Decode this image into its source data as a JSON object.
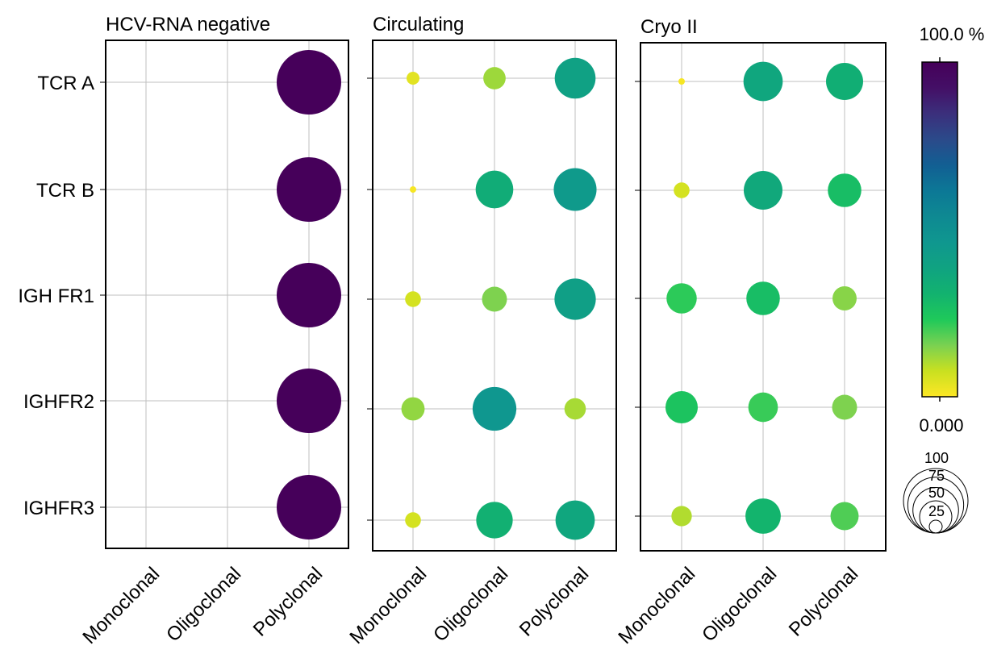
{
  "chart_data": {
    "type": "bubble",
    "categories": [
      "Monoclonal",
      "Oligoclonal",
      "Polyclonal"
    ],
    "rows": [
      "TCR A",
      "TCR B",
      "IGH FR1",
      "IGHFR2",
      "IGHFR3"
    ],
    "panels": [
      {
        "title": "HCV-RNA negative",
        "values": [
          [
            0,
            0,
            100
          ],
          [
            0,
            0,
            100
          ],
          [
            0,
            0,
            100
          ],
          [
            0,
            0,
            100
          ],
          [
            0,
            0,
            100
          ]
        ]
      },
      {
        "title": "Circulating",
        "values": [
          [
            4,
            12,
            40
          ],
          [
            1,
            34,
            44
          ],
          [
            6,
            15,
            41
          ],
          [
            13,
            46,
            11
          ],
          [
            6,
            32,
            37
          ]
        ]
      },
      {
        "title": "Cryo II",
        "values": [
          [
            1,
            37,
            33
          ],
          [
            6,
            36,
            27
          ],
          [
            22,
            27,
            14
          ],
          [
            25,
            21,
            15
          ],
          [
            10,
            30,
            19
          ]
        ]
      }
    ],
    "colorbar": {
      "max_label": "100.0 %",
      "min_label": "0.000",
      "range": [
        0,
        100
      ],
      "colors": [
        "#fde725",
        "#c9e020",
        "#7ad151",
        "#1fc95a",
        "#12b26f",
        "#10a381",
        "#0f978f",
        "#0e8992",
        "#0c7896",
        "#125f93",
        "#2b4a8a",
        "#3b2f7c",
        "#440f66",
        "#46005a"
      ]
    },
    "size_legend": {
      "labels": [
        "100",
        "75",
        "50",
        "25"
      ],
      "values": [
        100,
        75,
        50,
        25
      ]
    }
  }
}
